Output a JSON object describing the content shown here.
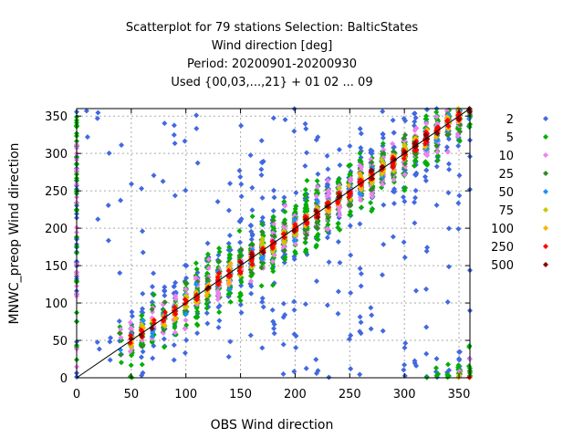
{
  "chart_data": {
    "type": "scatter",
    "title_lines": [
      "Scatterplot for   79 stations Selection: BalticStates",
      "Wind direction [deg]",
      "Period: 20200901-20200930",
      "Used {00,03,...,21} + 01 02 ... 09"
    ],
    "xlabel": "OBS Wind direction",
    "ylabel": "MNWC_preop Wind direction",
    "xlim": [
      0,
      360
    ],
    "ylim": [
      0,
      360
    ],
    "xticks": [
      0,
      50,
      100,
      150,
      200,
      250,
      300,
      350
    ],
    "yticks": [
      0,
      50,
      100,
      150,
      200,
      250,
      300,
      350
    ],
    "grid": true,
    "diagonal_line": true,
    "legend_position": "right",
    "legend_title": "",
    "series": [
      {
        "name": "2",
        "color": "#4169e1"
      },
      {
        "name": "5",
        "color": "#00b000"
      },
      {
        "name": "10",
        "color": "#ee82ee"
      },
      {
        "name": "25",
        "color": "#2e8b22"
      },
      {
        "name": "50",
        "color": "#1e90ff"
      },
      {
        "name": "75",
        "color": "#c8c800"
      },
      {
        "name": "100",
        "color": "#ffb000"
      },
      {
        "name": "250",
        "color": "#ff0000"
      },
      {
        "name": "500",
        "color": "#8b0000"
      }
    ]
  }
}
